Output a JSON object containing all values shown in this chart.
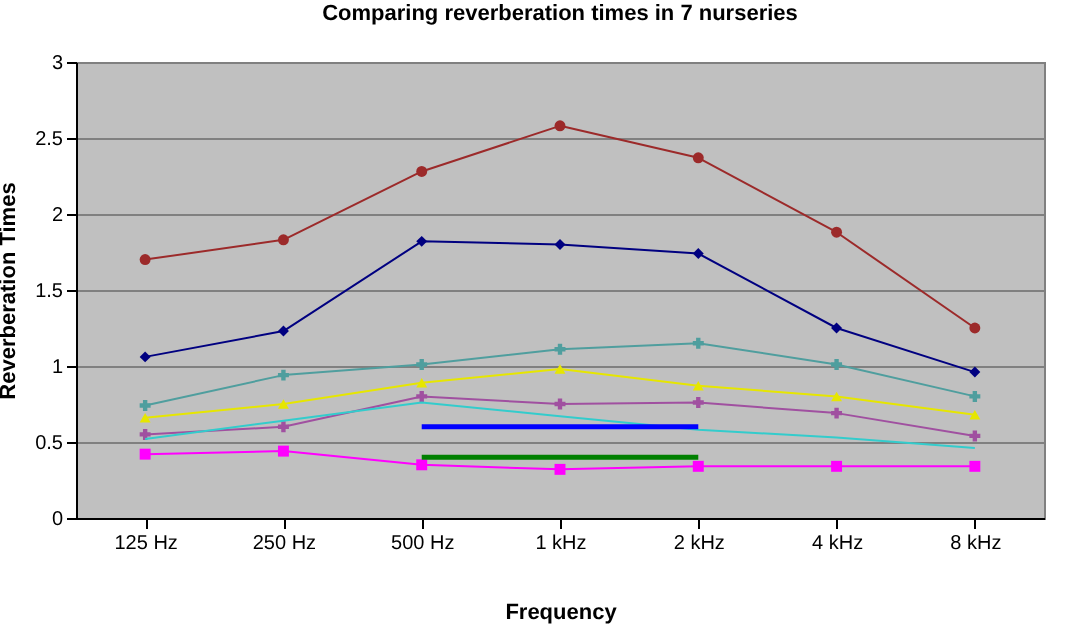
{
  "chart_data": {
    "type": "line",
    "title": "Comparing reverberation times in 7 nurseries",
    "xlabel": "Frequency",
    "ylabel": "Reverberation Times",
    "categories": [
      "125 Hz",
      "250 Hz",
      "500 Hz",
      "1 kHz",
      "2 kHz",
      "4 kHz",
      "8 kHz"
    ],
    "ylim": [
      0,
      3
    ],
    "yticks": [
      0,
      0.5,
      1,
      1.5,
      2,
      2.5,
      3
    ],
    "grid": "y",
    "series": [
      {
        "color": "#9c2a2a",
        "marker": "circle",
        "values": [
          1.7,
          1.83,
          2.28,
          2.58,
          2.37,
          1.88,
          1.25
        ]
      },
      {
        "color": "#000080",
        "marker": "diamond",
        "values": [
          1.06,
          1.23,
          1.82,
          1.8,
          1.74,
          1.25,
          0.96
        ]
      },
      {
        "color": "#4f9e9e",
        "marker": "cross",
        "values": [
          0.74,
          0.94,
          1.01,
          1.11,
          1.15,
          1.01,
          0.8
        ]
      },
      {
        "color": "#e6e600",
        "marker": "triangle",
        "values": [
          0.66,
          0.75,
          0.89,
          0.98,
          0.87,
          0.8,
          0.68
        ]
      },
      {
        "color": "#a050a0",
        "marker": "cross",
        "values": [
          0.55,
          0.6,
          0.8,
          0.75,
          0.76,
          0.69,
          0.54
        ]
      },
      {
        "color": "#33cccc",
        "marker": "none",
        "values": [
          0.52,
          0.64,
          0.76,
          0.67,
          0.58,
          0.53,
          0.46
        ]
      },
      {
        "color": "#ff00ff",
        "marker": "square",
        "values": [
          0.42,
          0.44,
          0.35,
          0.32,
          0.34,
          0.34,
          0.34
        ]
      },
      {
        "color": "#0000ff",
        "marker": "none",
        "values": [
          null,
          null,
          0.6,
          0.6,
          0.6,
          null,
          null
        ]
      },
      {
        "color": "#008000",
        "marker": "none",
        "values": [
          null,
          null,
          0.4,
          0.4,
          0.4,
          null,
          null
        ]
      }
    ]
  }
}
